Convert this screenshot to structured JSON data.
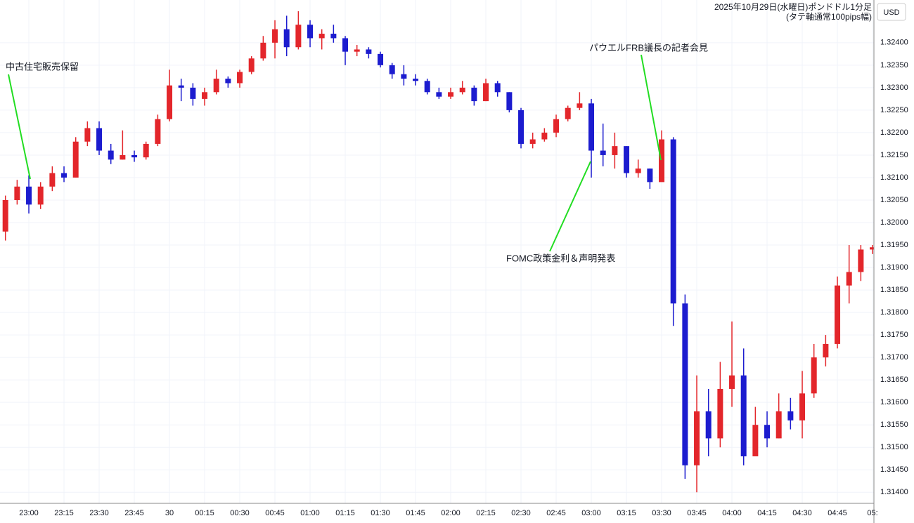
{
  "chart_data": {
    "type": "candlestick",
    "title": "2025年10月29日(水曜日)ポンドドル1分足",
    "subtitle": "(タテ軸通常100pips幅)",
    "currency": "USD",
    "annotations": [
      "中古住宅販売保留",
      "パウエルFRB議長の記者会見",
      "FOMC政策金利＆声明発表"
    ],
    "up_color": "#e3262b",
    "down_color": "#1c1ccf",
    "grid": true,
    "categories": [
      null,
      null,
      "23:00",
      null,
      null,
      "23:15",
      null,
      null,
      "23:30",
      null,
      null,
      "23:45",
      null,
      null,
      "30",
      null,
      null,
      "00:15",
      null,
      null,
      "00:30",
      null,
      null,
      "00:45",
      null,
      null,
      "01:00",
      null,
      null,
      "01:15",
      null,
      null,
      "01:30",
      null,
      null,
      "01:45",
      null,
      null,
      "02:00",
      null,
      null,
      "02:15",
      null,
      null,
      "02:30",
      null,
      null,
      "02:45",
      null,
      null,
      "03:00",
      null,
      null,
      "03:15",
      null,
      null,
      "03:30",
      null,
      null,
      "03:45",
      null,
      null,
      "04:00",
      null,
      null,
      "04:15",
      null,
      null,
      "04:30",
      null,
      null,
      "04:45",
      null,
      null,
      "05:"
    ],
    "open": [
      1.3198,
      1.3205,
      1.3208,
      1.3204,
      1.3208,
      1.3211,
      1.321,
      1.3218,
      1.3221,
      1.3216,
      1.3214,
      1.3215,
      1.32145,
      1.32175,
      1.3223,
      1.32305,
      1.323,
      1.32275,
      1.3229,
      1.3232,
      1.3231,
      1.32335,
      1.32365,
      1.324,
      1.3243,
      1.3239,
      1.3244,
      1.3241,
      1.3242,
      1.3241,
      1.3238,
      1.32385,
      1.32375,
      1.3235,
      1.3233,
      1.3232,
      1.32315,
      1.3229,
      1.3228,
      1.3229,
      1.323,
      1.3227,
      1.3231,
      1.3229,
      1.3225,
      1.32175,
      1.32185,
      1.322,
      1.3223,
      1.32255,
      1.32265,
      1.3216,
      1.3215,
      1.3217,
      1.3211,
      1.3212,
      1.3209,
      1.32185,
      1.3182,
      1.3146,
      1.3158,
      1.3152,
      1.3163,
      1.3166,
      1.3148,
      1.3155,
      1.3152,
      1.3158,
      1.3156,
      1.3162,
      1.317,
      1.3173,
      1.3186,
      1.3189,
      1.3194
    ],
    "high": [
      1.3206,
      1.32095,
      1.32105,
      1.3209,
      1.32125,
      1.32125,
      1.3219,
      1.32225,
      1.32225,
      1.32175,
      1.32205,
      1.3216,
      1.3218,
      1.3224,
      1.3234,
      1.3232,
      1.3231,
      1.323,
      1.3234,
      1.32325,
      1.3234,
      1.3237,
      1.32415,
      1.3245,
      1.3246,
      1.3247,
      1.3245,
      1.3243,
      1.3244,
      1.32415,
      1.32395,
      1.3239,
      1.3238,
      1.32355,
      1.3235,
      1.3233,
      1.3232,
      1.323,
      1.323,
      1.32315,
      1.32305,
      1.3232,
      1.32315,
      1.3229,
      1.32255,
      1.322,
      1.3221,
      1.3224,
      1.3226,
      1.3229,
      1.32275,
      1.3222,
      1.322,
      1.3217,
      1.3214,
      1.3212,
      1.32205,
      1.3219,
      1.3184,
      1.3166,
      1.3163,
      1.3169,
      1.3178,
      1.3172,
      1.3159,
      1.3158,
      1.3162,
      1.3161,
      1.3167,
      1.3173,
      1.3175,
      1.3188,
      1.3195,
      1.3195,
      1.3195
    ],
    "low": [
      1.3196,
      1.3204,
      1.3202,
      1.3203,
      1.3207,
      1.3209,
      1.321,
      1.3217,
      1.3215,
      1.3213,
      1.3214,
      1.32135,
      1.3214,
      1.3217,
      1.32225,
      1.3227,
      1.3226,
      1.3226,
      1.32285,
      1.323,
      1.323,
      1.3233,
      1.3236,
      1.32365,
      1.3237,
      1.32385,
      1.3239,
      1.32385,
      1.324,
      1.3235,
      1.3237,
      1.32365,
      1.32345,
      1.3232,
      1.32305,
      1.32305,
      1.32285,
      1.32275,
      1.32275,
      1.32285,
      1.3226,
      1.3227,
      1.3228,
      1.32245,
      1.32165,
      1.32165,
      1.3218,
      1.3219,
      1.32225,
      1.3225,
      1.321,
      1.32125,
      1.3212,
      1.321,
      1.321,
      1.32075,
      1.32095,
      1.3177,
      1.3143,
      1.314,
      1.3148,
      1.315,
      1.3159,
      1.3146,
      1.3149,
      1.315,
      1.3152,
      1.3154,
      1.3152,
      1.3161,
      1.3168,
      1.3172,
      1.3182,
      1.3187,
      1.3193
    ],
    "close": [
      1.3205,
      1.3208,
      1.3204,
      1.3208,
      1.3211,
      1.321,
      1.3218,
      1.3221,
      1.3216,
      1.3214,
      1.3215,
      1.32145,
      1.32175,
      1.3223,
      1.32305,
      1.323,
      1.32275,
      1.3229,
      1.3232,
      1.3231,
      1.32335,
      1.32365,
      1.324,
      1.3243,
      1.3239,
      1.3244,
      1.3241,
      1.3242,
      1.3241,
      1.3238,
      1.32385,
      1.32375,
      1.3235,
      1.3233,
      1.3232,
      1.32315,
      1.3229,
      1.3228,
      1.3229,
      1.323,
      1.3227,
      1.3231,
      1.3229,
      1.3225,
      1.32175,
      1.32185,
      1.322,
      1.3223,
      1.32255,
      1.32265,
      1.3216,
      1.3215,
      1.3217,
      1.3211,
      1.3212,
      1.3209,
      1.32185,
      1.3182,
      1.3146,
      1.3158,
      1.3152,
      1.3163,
      1.3166,
      1.3148,
      1.3155,
      1.3152,
      1.3158,
      1.3156,
      1.3162,
      1.317,
      1.3173,
      1.3186,
      1.3189,
      1.3194,
      1.31945
    ],
    "ylim": [
      1.31377,
      1.32495
    ],
    "yticks": [
      {
        "value": 1.314,
        "label": "1.31400"
      },
      {
        "value": 1.3145,
        "label": "1.31450"
      },
      {
        "value": 1.315,
        "label": "1.31500"
      },
      {
        "value": 1.3155,
        "label": "1.31550"
      },
      {
        "value": 1.316,
        "label": "1.31600"
      },
      {
        "value": 1.3165,
        "label": "1.31650"
      },
      {
        "value": 1.317,
        "label": "1.31700"
      },
      {
        "value": 1.3175,
        "label": "1.31750"
      },
      {
        "value": 1.318,
        "label": "1.31800"
      },
      {
        "value": 1.3185,
        "label": "1.31850"
      },
      {
        "value": 1.319,
        "label": "1.31900"
      },
      {
        "value": 1.3195,
        "label": "1.31950"
      },
      {
        "value": 1.32,
        "label": "1.32000"
      },
      {
        "value": 1.3205,
        "label": "1.32050"
      },
      {
        "value": 1.321,
        "label": "1.32100"
      },
      {
        "value": 1.3215,
        "label": "1.32150"
      },
      {
        "value": 1.322,
        "label": "1.32200"
      },
      {
        "value": 1.3225,
        "label": "1.32250"
      },
      {
        "value": 1.323,
        "label": "1.32300"
      },
      {
        "value": 1.3235,
        "label": "1.32350"
      },
      {
        "value": 1.324,
        "label": "1.32400"
      }
    ]
  }
}
